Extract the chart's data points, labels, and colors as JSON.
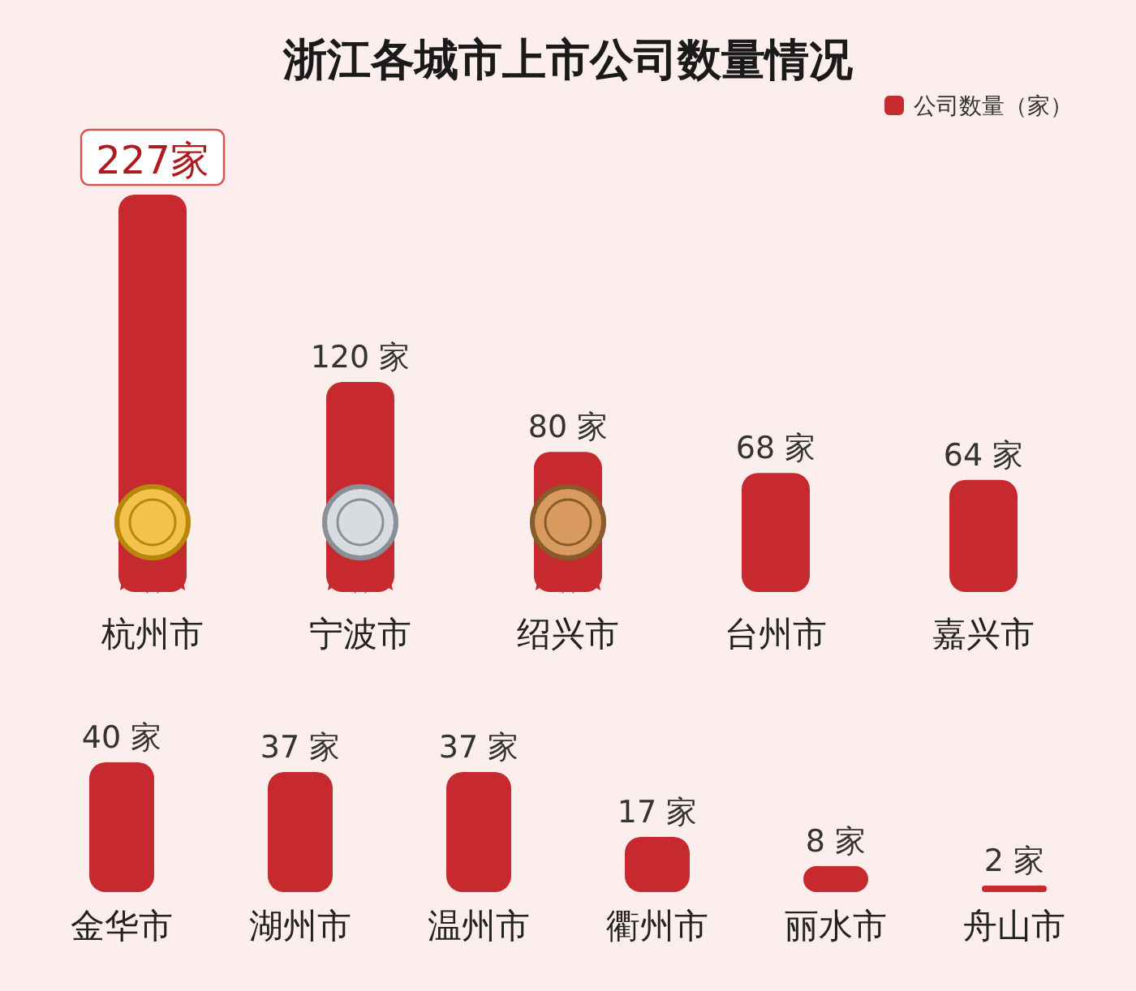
{
  "chart_data": [
    {
      "type": "bar",
      "title": "浙江各城市上市公司数量情况",
      "categories": [
        "杭州市",
        "宁波市",
        "绍兴市",
        "台州市",
        "嘉兴市"
      ],
      "legend": "top right",
      "series": [
        {
          "name": "公司数量（家）",
          "color": "#c62a2f",
          "values": [
            227,
            120,
            80,
            68,
            64
          ],
          "value_labels": [
            "227家",
            "120 家",
            "80 家",
            "68 家",
            "64 家"
          ]
        }
      ]
    },
    {
      "type": "bar",
      "categories": [
        "金华市",
        "湖州市",
        "温州市",
        "衢州市",
        "丽水市",
        "舟山市"
      ],
      "series": [
        {
          "color": "#c62a2f",
          "values": [
            40,
            37,
            37,
            17,
            8,
            2
          ],
          "value_labels": [
            "40 家",
            "37 家",
            "37 家",
            "17 家",
            "8 家",
            "2 家"
          ]
        }
      ]
    }
  ]
}
